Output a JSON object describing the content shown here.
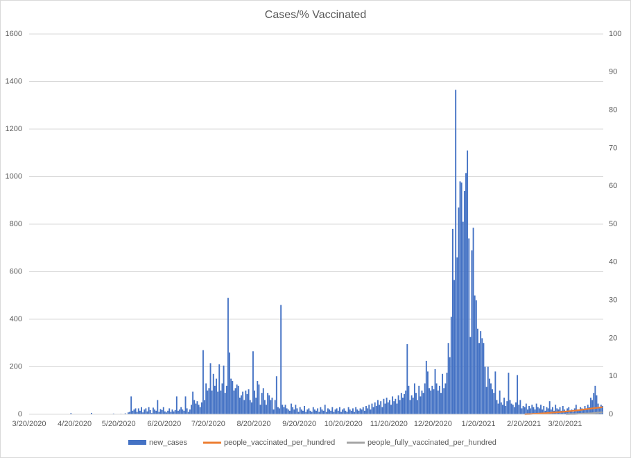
{
  "chart_data": {
    "type": "bar_line",
    "title": "Cases/% Vaccinated",
    "categories": [
      "3/20/2020",
      "3/21/2020",
      "3/22/2020",
      "3/23/2020",
      "3/24/2020",
      "3/25/2020",
      "3/26/2020",
      "3/27/2020",
      "3/28/2020",
      "3/29/2020",
      "3/30/2020",
      "3/31/2020",
      "4/1/2020",
      "4/2/2020",
      "4/3/2020",
      "4/4/2020",
      "4/5/2020",
      "4/6/2020",
      "4/7/2020",
      "4/8/2020",
      "4/9/2020",
      "4/10/2020",
      "4/11/2020",
      "4/12/2020",
      "4/13/2020",
      "4/14/2020",
      "4/15/2020",
      "4/16/2020",
      "4/17/2020",
      "4/18/2020",
      "4/19/2020",
      "4/20/2020",
      "4/21/2020",
      "4/22/2020",
      "4/23/2020",
      "4/24/2020",
      "4/25/2020",
      "4/26/2020",
      "4/27/2020",
      "4/28/2020",
      "4/29/2020",
      "4/30/2020",
      "5/1/2020",
      "5/2/2020",
      "5/3/2020",
      "5/4/2020",
      "5/5/2020",
      "5/6/2020",
      "5/7/2020",
      "5/8/2020",
      "5/9/2020",
      "5/10/2020",
      "5/11/2020",
      "5/12/2020",
      "5/13/2020",
      "5/14/2020",
      "5/15/2020",
      "5/16/2020",
      "5/17/2020",
      "5/18/2020",
      "5/19/2020",
      "5/20/2020",
      "5/21/2020",
      "5/22/2020",
      "5/23/2020",
      "5/24/2020",
      "5/25/2020",
      "5/26/2020",
      "5/27/2020",
      "5/28/2020",
      "5/29/2020",
      "5/30/2020",
      "5/31/2020",
      "6/1/2020",
      "6/2/2020",
      "6/3/2020",
      "6/4/2020",
      "6/5/2020",
      "6/6/2020",
      "6/7/2020",
      "6/8/2020",
      "6/9/2020",
      "6/10/2020",
      "6/11/2020",
      "6/12/2020",
      "6/13/2020",
      "6/14/2020",
      "6/15/2020",
      "6/16/2020",
      "6/17/2020",
      "6/18/2020",
      "6/19/2020",
      "6/20/2020",
      "6/21/2020",
      "6/22/2020",
      "6/23/2020",
      "6/24/2020",
      "6/25/2020",
      "6/26/2020",
      "6/27/2020",
      "6/28/2020",
      "6/29/2020",
      "6/30/2020",
      "7/1/2020",
      "7/2/2020",
      "7/3/2020",
      "7/4/2020",
      "7/5/2020",
      "7/6/2020",
      "7/7/2020",
      "7/8/2020",
      "7/9/2020",
      "7/10/2020",
      "7/11/2020",
      "7/12/2020",
      "7/13/2020",
      "7/14/2020",
      "7/15/2020",
      "7/16/2020",
      "7/17/2020",
      "7/18/2020",
      "7/19/2020",
      "7/20/2020",
      "7/21/2020",
      "7/22/2020",
      "7/23/2020",
      "7/24/2020",
      "7/25/2020",
      "7/26/2020",
      "7/27/2020",
      "7/28/2020",
      "7/29/2020",
      "7/30/2020",
      "7/31/2020",
      "8/1/2020",
      "8/2/2020",
      "8/3/2020",
      "8/4/2020",
      "8/5/2020",
      "8/6/2020",
      "8/7/2020",
      "8/8/2020",
      "8/9/2020",
      "8/10/2020",
      "8/11/2020",
      "8/12/2020",
      "8/13/2020",
      "8/14/2020",
      "8/15/2020",
      "8/16/2020",
      "8/17/2020",
      "8/18/2020",
      "8/19/2020",
      "8/20/2020",
      "8/21/2020",
      "8/22/2020",
      "8/23/2020",
      "8/24/2020",
      "8/25/2020",
      "8/26/2020",
      "8/27/2020",
      "8/28/2020",
      "8/29/2020",
      "8/30/2020",
      "8/31/2020",
      "9/1/2020",
      "9/2/2020",
      "9/3/2020",
      "9/4/2020",
      "9/5/2020",
      "9/6/2020",
      "9/7/2020",
      "9/8/2020",
      "9/9/2020",
      "9/10/2020",
      "9/11/2020",
      "9/12/2020",
      "9/13/2020",
      "9/14/2020",
      "9/15/2020",
      "9/16/2020",
      "9/17/2020",
      "9/18/2020",
      "9/19/2020",
      "9/20/2020",
      "9/21/2020",
      "9/22/2020",
      "9/23/2020",
      "9/24/2020",
      "9/25/2020",
      "9/26/2020",
      "9/27/2020",
      "9/28/2020",
      "9/29/2020",
      "9/30/2020",
      "10/1/2020",
      "10/2/2020",
      "10/3/2020",
      "10/4/2020",
      "10/5/2020",
      "10/6/2020",
      "10/7/2020",
      "10/8/2020",
      "10/9/2020",
      "10/10/2020",
      "10/11/2020",
      "10/12/2020",
      "10/13/2020",
      "10/14/2020",
      "10/15/2020",
      "10/16/2020",
      "10/17/2020",
      "10/18/2020",
      "10/19/2020",
      "10/20/2020",
      "10/21/2020",
      "10/22/2020",
      "10/23/2020",
      "10/24/2020",
      "10/25/2020",
      "10/26/2020",
      "10/27/2020",
      "10/28/2020",
      "10/29/2020",
      "10/30/2020",
      "10/31/2020",
      "11/1/2020",
      "11/2/2020",
      "11/3/2020",
      "11/4/2020",
      "11/5/2020",
      "11/6/2020",
      "11/7/2020",
      "11/8/2020",
      "11/9/2020",
      "11/10/2020",
      "11/11/2020",
      "11/12/2020",
      "11/13/2020",
      "11/14/2020",
      "11/15/2020",
      "11/16/2020",
      "11/17/2020",
      "11/18/2020",
      "11/19/2020",
      "11/20/2020",
      "11/21/2020",
      "11/22/2020",
      "11/23/2020",
      "11/24/2020",
      "11/25/2020",
      "11/26/2020",
      "11/27/2020",
      "11/28/2020",
      "11/29/2020",
      "11/30/2020",
      "12/1/2020",
      "12/2/2020",
      "12/3/2020",
      "12/4/2020",
      "12/5/2020",
      "12/6/2020",
      "12/7/2020",
      "12/8/2020",
      "12/9/2020",
      "12/10/2020",
      "12/11/2020",
      "12/12/2020",
      "12/13/2020",
      "12/14/2020",
      "12/15/2020",
      "12/16/2020",
      "12/17/2020",
      "12/18/2020",
      "12/19/2020",
      "12/20/2020",
      "12/21/2020",
      "12/22/2020",
      "12/23/2020",
      "12/24/2020",
      "12/25/2020",
      "12/26/2020",
      "12/27/2020",
      "12/28/2020",
      "12/29/2020",
      "12/30/2020",
      "12/31/2020",
      "1/1/2021",
      "1/2/2021",
      "1/3/2021",
      "1/4/2021",
      "1/5/2021",
      "1/6/2021",
      "1/7/2021",
      "1/8/2021",
      "1/9/2021",
      "1/10/2021",
      "1/11/2021",
      "1/12/2021",
      "1/13/2021",
      "1/14/2021",
      "1/15/2021",
      "1/16/2021",
      "1/17/2021",
      "1/18/2021",
      "1/19/2021",
      "1/20/2021",
      "1/21/2021",
      "1/22/2021",
      "1/23/2021",
      "1/24/2021",
      "1/25/2021",
      "1/26/2021",
      "1/27/2021",
      "1/28/2021",
      "1/29/2021",
      "1/30/2021",
      "1/31/2021",
      "2/1/2021",
      "2/2/2021",
      "2/3/2021",
      "2/4/2021",
      "2/5/2021",
      "2/6/2021",
      "2/7/2021",
      "2/8/2021",
      "2/9/2021",
      "2/10/2021",
      "2/11/2021",
      "2/12/2021",
      "2/13/2021",
      "2/14/2021",
      "2/15/2021",
      "2/16/2021",
      "2/17/2021",
      "2/18/2021",
      "2/19/2021",
      "2/20/2021",
      "2/21/2021",
      "2/22/2021",
      "2/23/2021",
      "2/24/2021",
      "2/25/2021",
      "2/26/2021",
      "2/27/2021",
      "2/28/2021",
      "3/1/2021",
      "3/2/2021",
      "3/3/2021",
      "3/4/2021",
      "3/5/2021",
      "3/6/2021",
      "3/7/2021",
      "3/8/2021",
      "3/9/2021",
      "3/10/2021",
      "3/11/2021",
      "3/12/2021",
      "3/13/2021",
      "3/14/2021",
      "3/15/2021",
      "3/16/2021",
      "3/17/2021",
      "3/18/2021",
      "3/19/2021",
      "3/20/2021",
      "3/21/2021",
      "3/22/2021",
      "3/23/2021",
      "3/24/2021",
      "3/25/2021",
      "3/26/2021",
      "3/27/2021",
      "3/28/2021",
      "3/29/2021",
      "3/30/2021",
      "3/31/2021",
      "4/1/2021",
      "4/2/2021",
      "4/3/2021",
      "4/4/2021",
      "4/5/2021",
      "4/6/2021",
      "4/7/2021",
      "4/8/2021",
      "4/9/2021",
      "4/10/2021",
      "4/11/2021",
      "4/12/2021",
      "4/13/2021",
      "4/14/2021"
    ],
    "series": [
      {
        "name": "new_cases",
        "color": "#4472c4",
        "values": [
          0,
          0,
          0,
          0,
          0,
          0,
          0,
          0,
          0,
          0,
          0,
          0,
          0,
          0,
          0,
          0,
          0,
          0,
          0,
          0,
          0,
          0,
          0,
          0,
          0,
          0,
          0,
          0,
          5,
          0,
          0,
          0,
          0,
          0,
          0,
          0,
          0,
          0,
          0,
          0,
          0,
          0,
          6,
          0,
          0,
          0,
          0,
          0,
          0,
          0,
          0,
          0,
          0,
          0,
          0,
          0,
          0,
          3,
          0,
          0,
          0,
          0,
          2,
          0,
          0,
          4,
          0,
          8,
          10,
          75,
          15,
          20,
          25,
          10,
          25,
          15,
          30,
          8,
          20,
          25,
          12,
          30,
          18,
          5,
          28,
          20,
          15,
          60,
          10,
          22,
          18,
          30,
          12,
          8,
          15,
          25,
          10,
          20,
          12,
          18,
          75,
          15,
          20,
          30,
          20,
          15,
          75,
          25,
          10,
          20,
          40,
          95,
          60,
          45,
          55,
          40,
          30,
          50,
          270,
          60,
          130,
          100,
          110,
          215,
          100,
          170,
          120,
          150,
          95,
          210,
          100,
          130,
          205,
          90,
          120,
          490,
          260,
          150,
          140,
          100,
          110,
          125,
          120,
          70,
          80,
          95,
          60,
          100,
          85,
          105,
          60,
          50,
          265,
          100,
          70,
          140,
          125,
          40,
          90,
          110,
          60,
          40,
          90,
          80,
          60,
          70,
          20,
          60,
          160,
          30,
          25,
          460,
          40,
          30,
          40,
          25,
          20,
          15,
          45,
          30,
          20,
          40,
          25,
          10,
          30,
          20,
          15,
          35,
          10,
          20,
          25,
          15,
          10,
          30,
          20,
          15,
          25,
          10,
          30,
          20,
          15,
          40,
          10,
          25,
          20,
          15,
          30,
          10,
          20,
          25,
          15,
          30,
          10,
          20,
          25,
          15,
          10,
          30,
          20,
          15,
          25,
          10,
          30,
          20,
          15,
          25,
          20,
          30,
          15,
          35,
          25,
          40,
          20,
          45,
          30,
          50,
          35,
          60,
          40,
          55,
          30,
          65,
          45,
          70,
          50,
          60,
          40,
          75,
          55,
          65,
          45,
          80,
          60,
          90,
          70,
          85,
          100,
          295,
          120,
          60,
          80,
          70,
          130,
          90,
          60,
          120,
          75,
          100,
          90,
          130,
          225,
          180,
          110,
          100,
          120,
          105,
          190,
          130,
          100,
          120,
          90,
          170,
          110,
          130,
          175,
          300,
          240,
          410,
          780,
          565,
          1365,
          660,
          870,
          980,
          975,
          810,
          940,
          1015,
          1110,
          740,
          325,
          690,
          785,
          500,
          480,
          360,
          300,
          350,
          320,
          300,
          200,
          115,
          200,
          150,
          130,
          105,
          90,
          180,
          60,
          45,
          100,
          50,
          40,
          70,
          35,
          55,
          175,
          60,
          45,
          40,
          30,
          50,
          165,
          40,
          60,
          25,
          35,
          30,
          45,
          20,
          35,
          25,
          40,
          30,
          20,
          45,
          30,
          25,
          40,
          20,
          35,
          15,
          30,
          25,
          55,
          20,
          30,
          15,
          40,
          25,
          20,
          30,
          15,
          35,
          20,
          10,
          25,
          30,
          15,
          20,
          10,
          25,
          40,
          20,
          15,
          30,
          25,
          20,
          35,
          25,
          40,
          30,
          70,
          60,
          90,
          120,
          80,
          45,
          25,
          40,
          35
        ]
      },
      {
        "name": "people_vaccinated_per_hundred",
        "color": "#ed7d31",
        "axis": "y2",
        "x": [
          "2/20/2021",
          "2/21/2021",
          "2/22/2021",
          "2/23/2021",
          "2/24/2021",
          "2/25/2021",
          "2/26/2021",
          "2/27/2021",
          "2/28/2021",
          "3/1/2021",
          "3/2/2021",
          "3/3/2021",
          "3/4/2021",
          "3/5/2021",
          "3/6/2021",
          "3/7/2021",
          "3/8/2021",
          "3/9/2021",
          "3/10/2021",
          "3/11/2021",
          "3/12/2021",
          "3/13/2021",
          "3/14/2021",
          "3/15/2021",
          "3/16/2021",
          "3/17/2021",
          "3/18/2021",
          "3/19/2021",
          "3/20/2021",
          "3/21/2021",
          "3/22/2021",
          "3/23/2021",
          "3/24/2021",
          "3/25/2021",
          "3/26/2021",
          "3/27/2021",
          "3/28/2021",
          "3/29/2021",
          "3/30/2021",
          "3/31/2021",
          "4/1/2021",
          "4/2/2021",
          "4/3/2021",
          "4/4/2021",
          "4/5/2021",
          "4/6/2021",
          "4/7/2021",
          "4/8/2021",
          "4/9/2021",
          "4/10/2021",
          "4/11/2021",
          "4/12/2021",
          "4/13/2021",
          "4/14/2021"
        ],
        "values": [
          0.0,
          0.02,
          0.04,
          0.06,
          0.08,
          0.1,
          0.12,
          0.14,
          0.16,
          0.18,
          0.2,
          0.22,
          0.25,
          0.28,
          0.3,
          0.33,
          0.36,
          0.39,
          0.42,
          0.45,
          0.48,
          0.5,
          0.53,
          0.56,
          0.6,
          0.63,
          0.66,
          0.7,
          0.73,
          0.76,
          0.8,
          0.84,
          0.88,
          0.92,
          0.96,
          1.0,
          1.05,
          1.1,
          1.15,
          1.2,
          1.25,
          1.3,
          1.35,
          1.4,
          1.45,
          1.5,
          1.55,
          1.6,
          1.65,
          1.7,
          1.74,
          1.78,
          1.82,
          1.86
        ]
      },
      {
        "name": "people_fully_vaccinated_per_hundred",
        "color": "#a5a5a5",
        "axis": "y2",
        "x": [
          "3/20/2021",
          "3/21/2021",
          "3/22/2021",
          "3/23/2021",
          "3/24/2021",
          "3/25/2021",
          "3/26/2021",
          "3/27/2021",
          "3/28/2021",
          "3/29/2021",
          "3/30/2021",
          "3/31/2021",
          "4/1/2021",
          "4/2/2021",
          "4/3/2021",
          "4/4/2021",
          "4/5/2021",
          "4/6/2021",
          "4/7/2021",
          "4/8/2021",
          "4/9/2021",
          "4/10/2021",
          "4/11/2021",
          "4/12/2021",
          "4/13/2021",
          "4/14/2021"
        ],
        "values": [
          0.0,
          0.01,
          0.02,
          0.03,
          0.04,
          0.05,
          0.06,
          0.08,
          0.1,
          0.12,
          0.14,
          0.16,
          0.18,
          0.2,
          0.22,
          0.24,
          0.26,
          0.28,
          0.3,
          0.33,
          0.36,
          0.4,
          0.44,
          0.48,
          0.52,
          0.56
        ]
      }
    ],
    "xticks": [
      "3/20/2020",
      "4/20/2020",
      "5/20/2020",
      "6/20/2020",
      "7/20/2020",
      "8/20/2020",
      "9/20/2020",
      "10/20/2020",
      "11/20/2020",
      "12/20/2020",
      "1/20/2021",
      "2/20/2021",
      "3/20/2021"
    ],
    "ylim": [
      0,
      1600
    ],
    "yticks": [
      0,
      200,
      400,
      600,
      800,
      1000,
      1200,
      1400,
      1600
    ],
    "y2lim": [
      0,
      100
    ],
    "y2ticks": [
      0,
      10,
      20,
      30,
      40,
      50,
      60,
      70,
      80,
      90,
      100
    ],
    "grid": true,
    "legend": "bottom"
  }
}
